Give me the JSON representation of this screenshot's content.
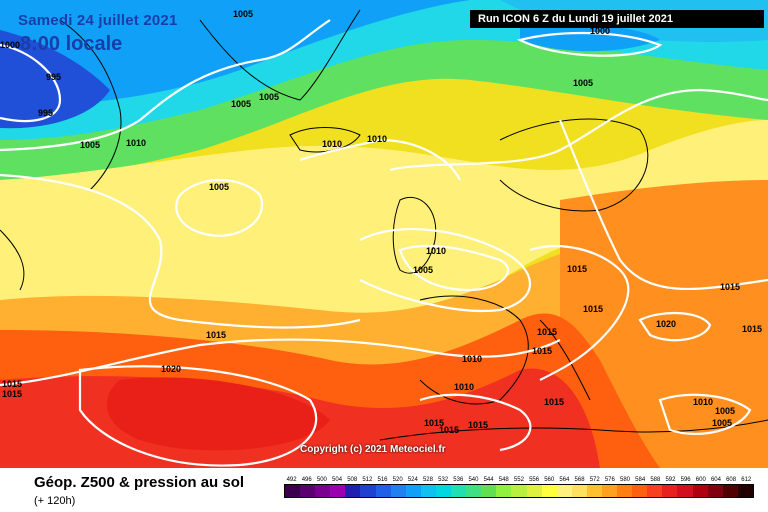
{
  "header": {
    "date": "Samedi 24 juillet 2021",
    "time": "8:00 locale",
    "run": "Run ICON 6 Z du Lundi 19 juillet 2021"
  },
  "copyright": "Copyright (c) 2021 Meteociel.fr",
  "isobar_labels": {
    "l1005": "1005",
    "l1010": "1010",
    "l1015": "1015",
    "l1020": "1020",
    "l1000": "1000",
    "l995": "995"
  },
  "legend": {
    "title": "Géop. Z500 & pression au sol",
    "subtitle": "(+ 120h)",
    "values": [
      "492",
      "496",
      "500",
      "504",
      "508",
      "512",
      "516",
      "520",
      "524",
      "528",
      "532",
      "536",
      "540",
      "544",
      "548",
      "552",
      "556",
      "560",
      "564",
      "568",
      "572",
      "576",
      "580",
      "584",
      "588",
      "592",
      "596",
      "600",
      "604",
      "608",
      "612"
    ],
    "colors": [
      "#3a0050",
      "#5a0070",
      "#7a0090",
      "#9a00b0",
      "#2020b0",
      "#2040d0",
      "#2060e8",
      "#2080f0",
      "#10a0f8",
      "#10c0f0",
      "#00d8e0",
      "#20e0b0",
      "#40e080",
      "#60e050",
      "#90f040",
      "#b8f040",
      "#e0f040",
      "#ffff40",
      "#fff080",
      "#ffe060",
      "#ffc030",
      "#ffa020",
      "#ff8010",
      "#ff6010",
      "#f84020",
      "#e82020",
      "#d01020",
      "#b00010",
      "#800010",
      "#500000",
      "#200000"
    ]
  }
}
